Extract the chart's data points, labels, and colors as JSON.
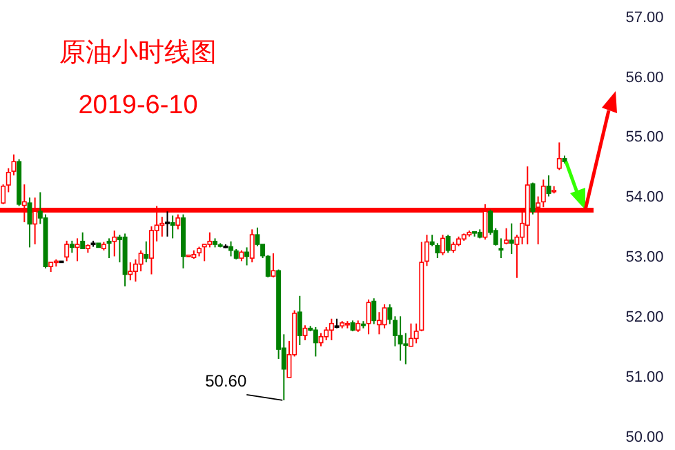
{
  "chart_data": {
    "type": "candlestick",
    "title": "原油小时线图",
    "subtitle": "2019-6-10",
    "categories": [
      null,
      null,
      null,
      null,
      null,
      null,
      null,
      null,
      null,
      null,
      null,
      null,
      null,
      null,
      null,
      null,
      null,
      null,
      null,
      null,
      null,
      null,
      null,
      null,
      null,
      null,
      null,
      null,
      null,
      null,
      null,
      null,
      null,
      null,
      null,
      null,
      null,
      null,
      null,
      null,
      null,
      null,
      null,
      null,
      null,
      null,
      null,
      null,
      null,
      null,
      null,
      null,
      null,
      null,
      null,
      null,
      null,
      null,
      null,
      null,
      null,
      null,
      null,
      null,
      null,
      null,
      null,
      null,
      null,
      null,
      null,
      null,
      null,
      null,
      null,
      null,
      null,
      null,
      null,
      null,
      null,
      null,
      null,
      null,
      null,
      null,
      null,
      null,
      null,
      null,
      null,
      null,
      null,
      null,
      null,
      null,
      null,
      null,
      null,
      null,
      null,
      null,
      null,
      null,
      null,
      null,
      null
    ],
    "ohlc": [
      [
        53.89,
        54.2,
        53.87,
        54.17
      ],
      [
        54.19,
        54.47,
        54.07,
        54.4
      ],
      [
        54.42,
        54.7,
        54.35,
        54.58
      ],
      [
        54.58,
        54.62,
        53.84,
        53.87
      ],
      [
        53.85,
        54.2,
        53.57,
        53.91
      ],
      [
        53.89,
        53.98,
        53.15,
        53.54
      ],
      [
        53.54,
        53.98,
        53.2,
        53.75
      ],
      [
        53.75,
        54.07,
        53.54,
        53.64
      ],
      [
        53.64,
        53.7,
        52.8,
        52.83
      ],
      [
        52.83,
        52.9,
        52.74,
        52.9
      ],
      [
        52.9,
        52.95,
        52.83,
        52.92
      ],
      [
        52.92,
        52.92,
        52.9,
        52.92
      ],
      [
        52.99,
        53.26,
        52.92,
        53.2
      ],
      [
        53.2,
        53.26,
        53.06,
        53.15
      ],
      [
        53.15,
        53.3,
        52.92,
        53.2
      ],
      [
        53.25,
        53.4,
        53.13,
        53.13
      ],
      [
        53.13,
        53.2,
        53.06,
        53.18
      ],
      [
        53.22,
        53.26,
        53.16,
        53.22
      ],
      [
        53.22,
        53.22,
        53.15,
        53.15
      ],
      [
        53.13,
        53.24,
        53.1,
        53.2
      ],
      [
        53.25,
        53.3,
        52.97,
        53.22
      ],
      [
        53.25,
        53.43,
        53.0,
        53.32
      ],
      [
        53.32,
        53.36,
        52.9,
        53.28
      ],
      [
        53.32,
        53.38,
        52.5,
        52.7
      ],
      [
        52.7,
        52.9,
        52.6,
        52.75
      ],
      [
        52.75,
        52.95,
        52.58,
        52.87
      ],
      [
        52.87,
        53.1,
        52.75,
        53.05
      ],
      [
        53.03,
        53.25,
        52.9,
        52.97
      ],
      [
        52.97,
        53.5,
        52.7,
        53.43
      ],
      [
        53.43,
        53.84,
        53.25,
        53.52
      ],
      [
        53.52,
        53.66,
        53.33,
        53.55
      ],
      [
        53.57,
        53.75,
        53.33,
        53.57
      ],
      [
        53.56,
        53.68,
        53.3,
        53.52
      ],
      [
        53.52,
        53.7,
        53.45,
        53.64
      ],
      [
        53.64,
        53.7,
        52.8,
        53.0
      ],
      [
        53.0,
        53.02,
        53.0,
        53.02
      ],
      [
        52.98,
        53.1,
        52.96,
        53.03
      ],
      [
        53.06,
        53.16,
        53.0,
        53.13
      ],
      [
        53.16,
        53.2,
        52.92,
        53.2
      ],
      [
        53.2,
        53.4,
        53.15,
        53.25
      ],
      [
        53.25,
        53.3,
        53.15,
        53.2
      ],
      [
        53.19,
        53.22,
        53.15,
        53.17
      ],
      [
        53.17,
        53.2,
        53.14,
        53.17
      ],
      [
        53.16,
        53.25,
        53.0,
        53.1
      ],
      [
        53.09,
        53.12,
        52.95,
        52.97
      ],
      [
        52.97,
        53.1,
        52.92,
        53.07
      ],
      [
        53.07,
        53.15,
        52.85,
        53.0
      ],
      [
        52.97,
        53.45,
        52.9,
        53.36
      ],
      [
        53.36,
        53.48,
        53.17,
        53.2
      ],
      [
        53.2,
        53.2,
        52.97,
        53.01
      ],
      [
        53.0,
        53.02,
        52.65,
        52.67
      ],
      [
        52.67,
        53.05,
        52.65,
        52.76
      ],
      [
        52.76,
        52.78,
        51.29,
        51.45
      ],
      [
        51.47,
        51.7,
        50.6,
        51.12
      ],
      [
        50.98,
        51.59,
        50.98,
        51.36
      ],
      [
        51.36,
        52.1,
        51.33,
        52.05
      ],
      [
        52.07,
        52.34,
        51.52,
        51.68
      ],
      [
        51.68,
        51.85,
        51.6,
        51.8
      ],
      [
        51.8,
        51.84,
        51.75,
        51.77
      ],
      [
        51.77,
        51.82,
        51.33,
        51.56
      ],
      [
        51.56,
        51.72,
        51.5,
        51.66
      ],
      [
        51.66,
        51.82,
        51.6,
        51.77
      ],
      [
        51.77,
        51.96,
        51.6,
        51.88
      ],
      [
        51.84,
        51.96,
        51.8,
        51.84
      ],
      [
        51.84,
        51.92,
        51.8,
        51.89
      ],
      [
        51.87,
        51.92,
        51.8,
        51.88
      ],
      [
        51.89,
        51.93,
        51.75,
        51.77
      ],
      [
        51.77,
        51.93,
        51.74,
        51.88
      ],
      [
        51.87,
        51.92,
        51.8,
        51.86
      ],
      [
        51.88,
        52.28,
        51.7,
        52.23
      ],
      [
        52.25,
        52.3,
        51.87,
        51.93
      ],
      [
        51.86,
        52.07,
        51.7,
        51.93
      ],
      [
        51.86,
        52.2,
        51.8,
        52.14
      ],
      [
        52.14,
        52.2,
        51.87,
        51.95
      ],
      [
        51.93,
        52.0,
        51.5,
        51.68
      ],
      [
        51.68,
        52.0,
        51.26,
        51.54
      ],
      [
        51.54,
        51.72,
        51.2,
        51.53
      ],
      [
        51.5,
        51.88,
        51.5,
        51.63
      ],
      [
        51.63,
        51.88,
        51.55,
        51.75
      ],
      [
        51.77,
        53.24,
        51.75,
        52.9
      ],
      [
        52.92,
        53.36,
        52.84,
        53.24
      ],
      [
        53.24,
        53.36,
        53.17,
        53.2
      ],
      [
        53.18,
        53.22,
        52.97,
        53.06
      ],
      [
        53.06,
        53.36,
        53.02,
        53.3
      ],
      [
        53.33,
        53.36,
        53.06,
        53.1
      ],
      [
        53.1,
        53.24,
        53.06,
        53.2
      ],
      [
        53.2,
        53.33,
        53.17,
        53.29
      ],
      [
        53.29,
        53.38,
        53.26,
        53.36
      ],
      [
        53.36,
        53.43,
        53.33,
        53.4
      ],
      [
        53.41,
        53.41,
        53.33,
        53.4
      ],
      [
        53.4,
        53.45,
        53.3,
        53.32
      ],
      [
        53.32,
        53.87,
        53.28,
        53.75
      ],
      [
        53.75,
        53.78,
        53.36,
        53.4
      ],
      [
        53.43,
        53.47,
        53.18,
        53.2
      ],
      [
        53.13,
        53.3,
        52.97,
        53.12
      ],
      [
        53.22,
        53.47,
        53.2,
        53.27
      ],
      [
        53.27,
        53.55,
        53.04,
        53.22
      ],
      [
        53.2,
        53.36,
        52.64,
        53.32
      ],
      [
        53.32,
        53.77,
        53.2,
        53.55
      ],
      [
        53.52,
        54.5,
        53.2,
        54.19
      ],
      [
        54.21,
        54.23,
        53.7,
        53.75
      ],
      [
        53.82,
        54.0,
        53.2,
        53.89
      ],
      [
        53.91,
        54.28,
        53.82,
        54.17
      ],
      [
        54.17,
        54.35,
        54.0,
        54.05
      ],
      [
        54.08,
        54.17,
        54.05,
        54.1
      ],
      [
        54.47,
        54.9,
        54.44,
        54.63
      ],
      [
        54.63,
        54.68,
        54.55,
        54.58
      ]
    ],
    "ylim": [
      50,
      57
    ],
    "yticks": [
      {
        "value": 50,
        "label": "50.00"
      },
      {
        "value": 51,
        "label": "51.00"
      },
      {
        "value": 52,
        "label": "52.00"
      },
      {
        "value": 53,
        "label": "53.00"
      },
      {
        "value": 54,
        "label": "54.00"
      },
      {
        "value": 55,
        "label": "55.00"
      },
      {
        "value": 56,
        "label": "56.00"
      },
      {
        "value": 57,
        "label": "57.00"
      }
    ],
    "tick_labels": "y",
    "ref_lines": [
      {
        "axis": "y",
        "value": 53.77,
        "color": "#ff0000"
      }
    ],
    "annotations": [
      "50.60"
    ]
  }
}
